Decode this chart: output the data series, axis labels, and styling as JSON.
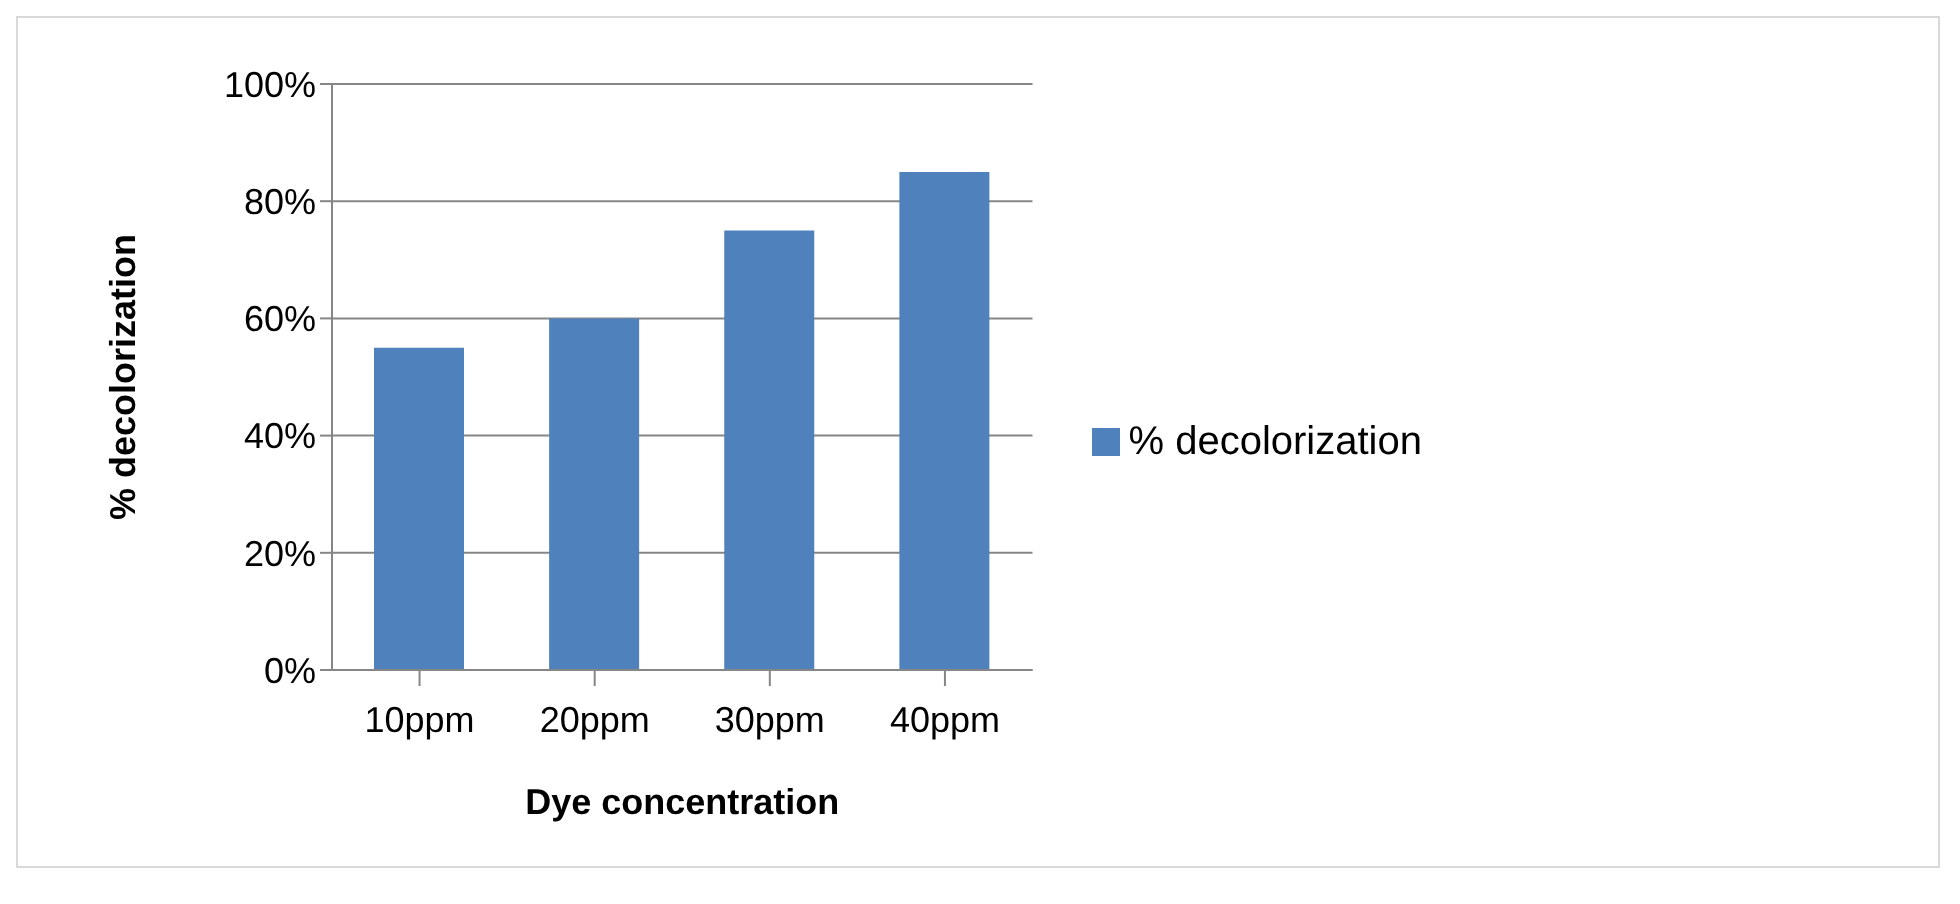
{
  "chart_data": {
    "type": "bar",
    "xlabel": "Dye concentration",
    "ylabel": "% decolorization",
    "categories": [
      "10ppm",
      "20ppm",
      "30ppm",
      "40ppm"
    ],
    "series": [
      {
        "name": "% decolorization",
        "color": "#4f81bd",
        "values": [
          55,
          60,
          75,
          85
        ]
      }
    ],
    "ylim": [
      0,
      100
    ],
    "yticks": [
      {
        "value": 0,
        "label": "0%"
      },
      {
        "value": 20,
        "label": "20%"
      },
      {
        "value": 40,
        "label": "40%"
      },
      {
        "value": 60,
        "label": "60%"
      },
      {
        "value": 80,
        "label": "80%"
      },
      {
        "value": 100,
        "label": "100%"
      }
    ],
    "grid": "y",
    "legend": "right"
  }
}
